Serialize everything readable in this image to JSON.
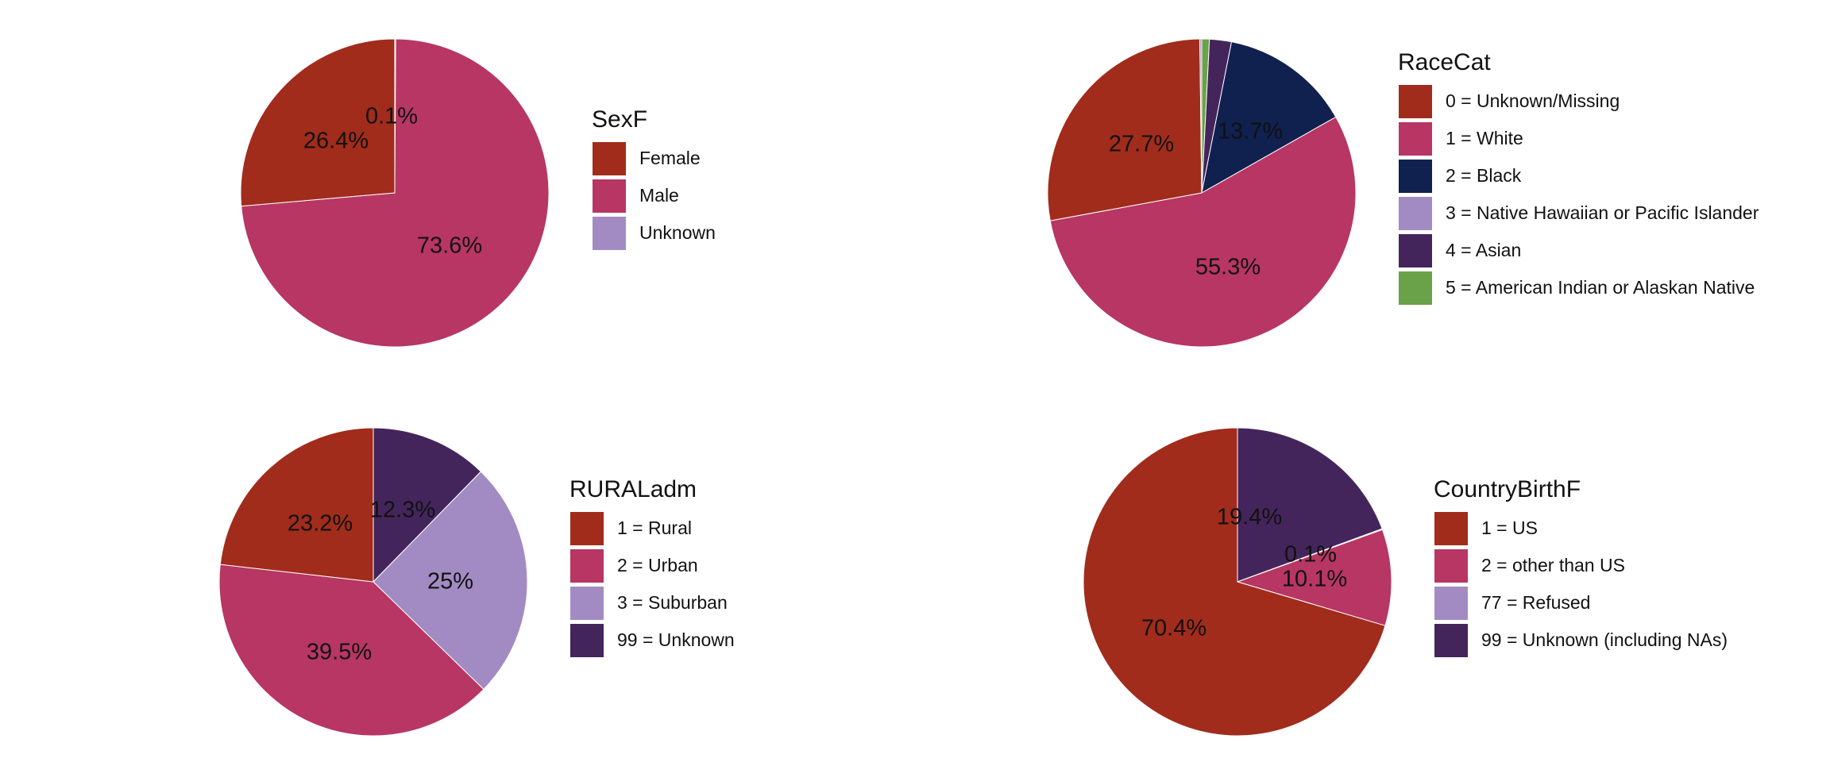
{
  "chart_data": [
    {
      "type": "pie",
      "legend_title": "SexF",
      "legend_position": "right",
      "categories": [
        "Female",
        "Male",
        "Unknown"
      ],
      "values": [
        26.4,
        73.6,
        0.1
      ],
      "labels": [
        "26.4%",
        "73.6%",
        "0.1%"
      ],
      "colors": [
        "#A12C1C",
        "#B83663",
        "#A28BC3"
      ]
    },
    {
      "type": "pie",
      "legend_title": "RaceCat",
      "legend_position": "right",
      "categories": [
        "0 = Unknown/Missing",
        "1 = White",
        "2 = Black",
        "3 = Native Hawaiian or Pacific Islander",
        "4 = Asian",
        "5 = American Indian or Alaskan Native"
      ],
      "values": [
        27.7,
        55.3,
        13.7,
        0.2,
        2.3,
        0.8
      ],
      "labels": [
        "27.7%",
        "55.3%",
        "13.7%",
        "",
        "",
        ""
      ],
      "colors": [
        "#A12C1C",
        "#B83663",
        "#10204F",
        "#A28BC3",
        "#44255B",
        "#6AA24A"
      ]
    },
    {
      "type": "pie",
      "legend_title": "RURALadm",
      "legend_position": "right",
      "categories": [
        "1 = Rural",
        "2 = Urban",
        "3 = Suburban",
        "99 = Unknown"
      ],
      "values": [
        23.2,
        39.5,
        25,
        12.3
      ],
      "labels": [
        "23.2%",
        "39.5%",
        "25%",
        "12.3%"
      ],
      "colors": [
        "#A12C1C",
        "#B83663",
        "#A28BC3",
        "#44255B"
      ]
    },
    {
      "type": "pie",
      "legend_title": "CountryBirthF",
      "legend_position": "right",
      "categories": [
        "1 = US",
        "2 = other than US",
        "77 = Refused",
        "99 = Unknown (including NAs)"
      ],
      "values": [
        70.4,
        10.1,
        0.1,
        19.4
      ],
      "labels": [
        "70.4%",
        "10.1%",
        "0.1%",
        "19.4%"
      ],
      "colors": [
        "#A12C1C",
        "#B83663",
        "#A28BC3",
        "#44255B"
      ]
    }
  ]
}
